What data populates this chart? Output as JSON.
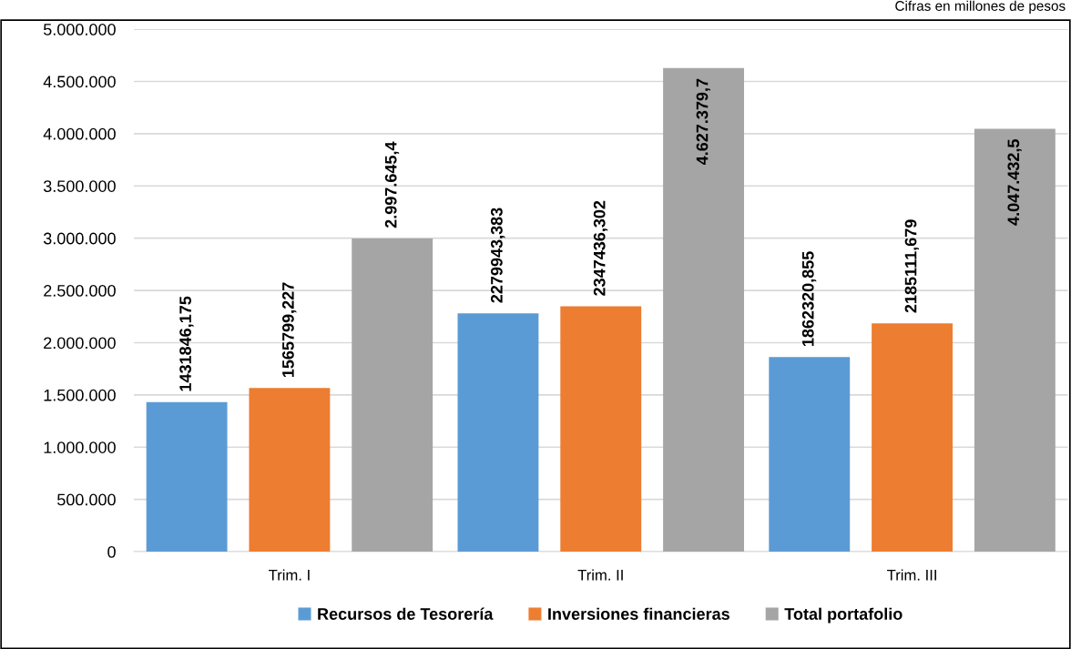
{
  "chart_data": {
    "type": "bar",
    "categories": [
      "Trim. I",
      "Trim. II",
      "Trim. III"
    ],
    "series": [
      {
        "name": "Recursos de Tesorería",
        "color": "#5b9bd5",
        "values": [
          1431846.175,
          2279943.383,
          1862320.855
        ],
        "value_labels": [
          "1431846,175",
          "2279943,383",
          "1862320,855"
        ]
      },
      {
        "name": "Inversiones financieras",
        "color": "#ed7d31",
        "values": [
          1565799.227,
          2347436.302,
          2185111.679
        ],
        "value_labels": [
          "1565799,227",
          "2347436,302",
          "2185111,679"
        ]
      },
      {
        "name": "Total portafolio",
        "color": "#a5a5a5",
        "values": [
          2997645.4,
          4627379.7,
          4047432.5
        ],
        "value_labels": [
          "2.997.645,4",
          "4.627.379,7",
          "4.047.432,5"
        ]
      }
    ],
    "ylim": [
      0,
      5000000
    ],
    "yticks": [
      {
        "value": 0,
        "label": "0"
      },
      {
        "value": 500000,
        "label": "500.000"
      },
      {
        "value": 1000000,
        "label": "1.000.000"
      },
      {
        "value": 1500000,
        "label": "1.500.000"
      },
      {
        "value": 2000000,
        "label": "2.000.000"
      },
      {
        "value": 2500000,
        "label": "2.500.000"
      },
      {
        "value": 3000000,
        "label": "3.000.000"
      },
      {
        "value": 3500000,
        "label": "3.500.000"
      },
      {
        "value": 4000000,
        "label": "4.000.000"
      },
      {
        "value": 4500000,
        "label": "4.500.000"
      },
      {
        "value": 5000000,
        "label": "5.000.000"
      }
    ],
    "grid": "y",
    "legend": "bottom",
    "annotations": [
      "Cifras en millones de pesos"
    ]
  }
}
